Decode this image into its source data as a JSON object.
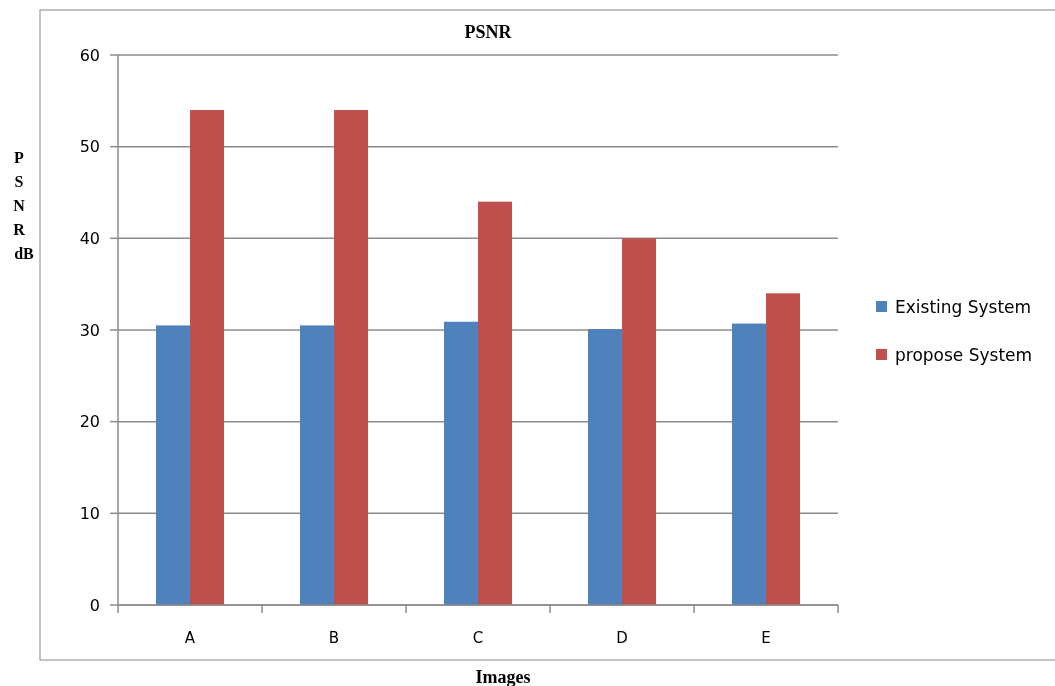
{
  "chart_data": {
    "type": "bar",
    "title": "PSNR",
    "xlabel": "Images",
    "ylabel": "PSNR dB",
    "categories": [
      "A",
      "B",
      "C",
      "D",
      "E"
    ],
    "series": [
      {
        "name": "Existing System",
        "color": "#4f81bd",
        "values": [
          30.5,
          30.5,
          30.9,
          30.1,
          30.7
        ]
      },
      {
        "name": "propose System",
        "color": "#c0504d",
        "values": [
          54,
          54,
          44,
          40,
          34
        ]
      }
    ],
    "ylim": [
      0,
      60
    ],
    "yticks": [
      0,
      10,
      20,
      30,
      40,
      50,
      60
    ],
    "grid": "y",
    "legend": "right"
  }
}
